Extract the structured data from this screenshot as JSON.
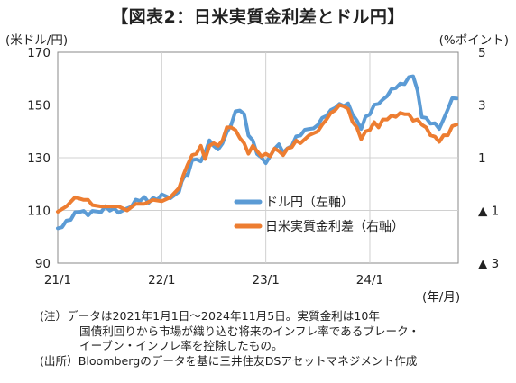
{
  "title": "【図表2：日米実質金利差とドル円】",
  "left_unit": "(米ドル/円)",
  "right_unit": "(%ポイント)",
  "x_unit": "(年/月)",
  "notes": [
    "(注）データは2021年1月1日～2024年11月5日。実質金利は10年",
    "国債利回りから市場が織り込む将来のインフレ率であるブレーク・",
    "イーブン・インフレ率を控除したもの。",
    "(出所）Bloombergのデータを基に三井住友DSアセットマネジメント作成"
  ],
  "colors": {
    "usdjpy": "#5B9BD5",
    "spread": "#ED7D31",
    "grid": "#d0d0d0",
    "axis": "#888888"
  },
  "chart_data": {
    "type": "line",
    "title": "【図表2：日米実質金利差とドル円】",
    "xlabel": "(年/月)",
    "ylabel_left": "(米ドル/円)",
    "ylabel_right": "(%ポイント)",
    "x_start": "2021/1",
    "x_end": "2024/11",
    "x_ticks": [
      {
        "label": "21/1",
        "t": 0
      },
      {
        "label": "22/1",
        "t": 12
      },
      {
        "label": "23/1",
        "t": 24
      },
      {
        "label": "24/1",
        "t": 36
      }
    ],
    "ylim_left": [
      90,
      170
    ],
    "ylim_right": [
      -3,
      5
    ],
    "left_ticks": [
      {
        "label": "170",
        "v": 170
      },
      {
        "label": "150",
        "v": 150
      },
      {
        "label": "130",
        "v": 130
      },
      {
        "label": "110",
        "v": 110
      },
      {
        "label": "90",
        "v": 90
      }
    ],
    "right_ticks": [
      {
        "label": "5",
        "v": 5
      },
      {
        "label": "3",
        "v": 3
      },
      {
        "label": "1",
        "v": 1
      },
      {
        "label": "▲ 1",
        "v": -1
      },
      {
        "label": "▲ 3",
        "v": -3
      }
    ],
    "grid": true,
    "legend_position": "center-right",
    "series": [
      {
        "name": "ドル円（左軸）",
        "axis": "left",
        "color": "#5B9BD5",
        "points": [
          [
            0,
            103.2
          ],
          [
            0.5,
            104.2
          ],
          [
            1,
            105.5
          ],
          [
            1.5,
            107
          ],
          [
            2,
            108.7
          ],
          [
            2.5,
            110
          ],
          [
            3,
            109.2
          ],
          [
            3.5,
            108.7
          ],
          [
            4,
            109.2
          ],
          [
            5,
            110
          ],
          [
            5.5,
            111
          ],
          [
            6,
            110.5
          ],
          [
            6.5,
            110.2
          ],
          [
            7,
            109.7
          ],
          [
            8,
            110.2
          ],
          [
            8.5,
            112
          ],
          [
            9,
            113.5
          ],
          [
            9.5,
            114.2
          ],
          [
            10,
            114.5
          ],
          [
            10.5,
            113.5
          ],
          [
            11,
            114.2
          ],
          [
            11.5,
            114.6
          ],
          [
            12,
            115.5
          ],
          [
            13,
            115.2
          ],
          [
            14,
            116.5
          ],
          [
            14.3,
            121.5
          ],
          [
            14.7,
            123
          ],
          [
            15,
            124
          ],
          [
            15.5,
            128.5
          ],
          [
            16,
            130
          ],
          [
            16.5,
            128
          ],
          [
            17,
            132.5
          ],
          [
            17.5,
            136
          ],
          [
            18,
            135
          ],
          [
            18.5,
            132.5
          ],
          [
            19,
            136
          ],
          [
            19.5,
            139
          ],
          [
            20,
            143
          ],
          [
            20.5,
            147
          ],
          [
            21,
            148.5
          ],
          [
            21.5,
            146
          ],
          [
            22,
            139
          ],
          [
            22.5,
            136
          ],
          [
            23,
            132
          ],
          [
            23.5,
            129.5
          ],
          [
            24,
            128.5
          ],
          [
            24.5,
            130
          ],
          [
            25,
            134
          ],
          [
            25.5,
            134.5
          ],
          [
            26,
            132.5
          ],
          [
            26.5,
            133
          ],
          [
            27,
            135
          ],
          [
            27.5,
            137.5
          ],
          [
            28,
            139
          ],
          [
            28.5,
            140
          ],
          [
            29,
            141.5
          ],
          [
            29.5,
            140.5
          ],
          [
            30,
            143
          ],
          [
            30.5,
            144.5
          ],
          [
            31,
            146.5
          ],
          [
            31.5,
            147.5
          ],
          [
            32,
            149.5
          ],
          [
            32.5,
            149.8
          ],
          [
            33,
            150.2
          ],
          [
            33.5,
            150
          ],
          [
            34,
            147
          ],
          [
            34.5,
            143.5
          ],
          [
            35,
            141.5
          ],
          [
            35.5,
            145
          ],
          [
            36,
            147
          ],
          [
            36.5,
            149.5
          ],
          [
            37,
            151
          ],
          [
            37.5,
            151.5
          ],
          [
            38,
            154
          ],
          [
            38.5,
            155.5
          ],
          [
            39,
            157
          ],
          [
            39.5,
            157.5
          ],
          [
            40,
            158.5
          ],
          [
            40.5,
            160
          ],
          [
            41,
            161.5
          ],
          [
            41.5,
            155
          ],
          [
            42,
            146
          ],
          [
            42.5,
            144.5
          ],
          [
            43,
            143.5
          ],
          [
            43.5,
            142.5
          ],
          [
            44,
            141.5
          ],
          [
            44.5,
            144
          ],
          [
            45,
            149
          ],
          [
            45.5,
            152
          ],
          [
            46,
            152.5
          ]
        ]
      },
      {
        "name": "日米実質金利差（右軸）",
        "axis": "right",
        "color": "#ED7D31",
        "points": [
          [
            0,
            -1.05
          ],
          [
            1,
            -0.8
          ],
          [
            2,
            -0.55
          ],
          [
            3,
            -0.55
          ],
          [
            3.5,
            -0.65
          ],
          [
            4,
            -0.75
          ],
          [
            5,
            -0.9
          ],
          [
            6,
            -0.8
          ],
          [
            7,
            -0.9
          ],
          [
            8,
            -0.95
          ],
          [
            9,
            -0.8
          ],
          [
            10,
            -0.7
          ],
          [
            11,
            -0.65
          ],
          [
            12,
            -0.6
          ],
          [
            13,
            -0.55
          ],
          [
            14,
            -0.1
          ],
          [
            14.5,
            0.3
          ],
          [
            15,
            0.8
          ],
          [
            15.5,
            1.05
          ],
          [
            16,
            1.2
          ],
          [
            16.5,
            1.4
          ],
          [
            17,
            1.0
          ],
          [
            17.5,
            1.4
          ],
          [
            18,
            1.6
          ],
          [
            18.5,
            1.4
          ],
          [
            19,
            1.7
          ],
          [
            19.5,
            2.1
          ],
          [
            20,
            2.2
          ],
          [
            20.5,
            2.0
          ],
          [
            21,
            1.8
          ],
          [
            21.5,
            1.5
          ],
          [
            22,
            1.2
          ],
          [
            22.5,
            1.4
          ],
          [
            23,
            1.3
          ],
          [
            23.5,
            1.0
          ],
          [
            24,
            1.2
          ],
          [
            24.5,
            1.0
          ],
          [
            25,
            1.4
          ],
          [
            25.5,
            1.2
          ],
          [
            26,
            1.15
          ],
          [
            26.5,
            1.3
          ],
          [
            27,
            1.45
          ],
          [
            27.5,
            1.6
          ],
          [
            28,
            1.6
          ],
          [
            29,
            1.8
          ],
          [
            30,
            2.05
          ],
          [
            30.5,
            2.2
          ],
          [
            31,
            2.5
          ],
          [
            31.5,
            2.65
          ],
          [
            32,
            2.85
          ],
          [
            32.5,
            2.95
          ],
          [
            33,
            3.0
          ],
          [
            33.5,
            2.8
          ],
          [
            34,
            2.4
          ],
          [
            34.5,
            2.1
          ],
          [
            35,
            1.75
          ],
          [
            35.5,
            1.95
          ],
          [
            36,
            2.1
          ],
          [
            36.5,
            2.3
          ],
          [
            37,
            2.2
          ],
          [
            37.5,
            2.4
          ],
          [
            38,
            2.5
          ],
          [
            38.5,
            2.55
          ],
          [
            39,
            2.6
          ],
          [
            39.5,
            2.65
          ],
          [
            40,
            2.7
          ],
          [
            40.5,
            2.6
          ],
          [
            41,
            2.45
          ],
          [
            41.5,
            2.4
          ],
          [
            42,
            2.3
          ],
          [
            42.5,
            2.1
          ],
          [
            43,
            1.9
          ],
          [
            43.5,
            1.75
          ],
          [
            44,
            1.65
          ],
          [
            44.5,
            1.8
          ],
          [
            45,
            1.9
          ],
          [
            45.5,
            2.15
          ],
          [
            46,
            2.25
          ]
        ]
      }
    ]
  }
}
